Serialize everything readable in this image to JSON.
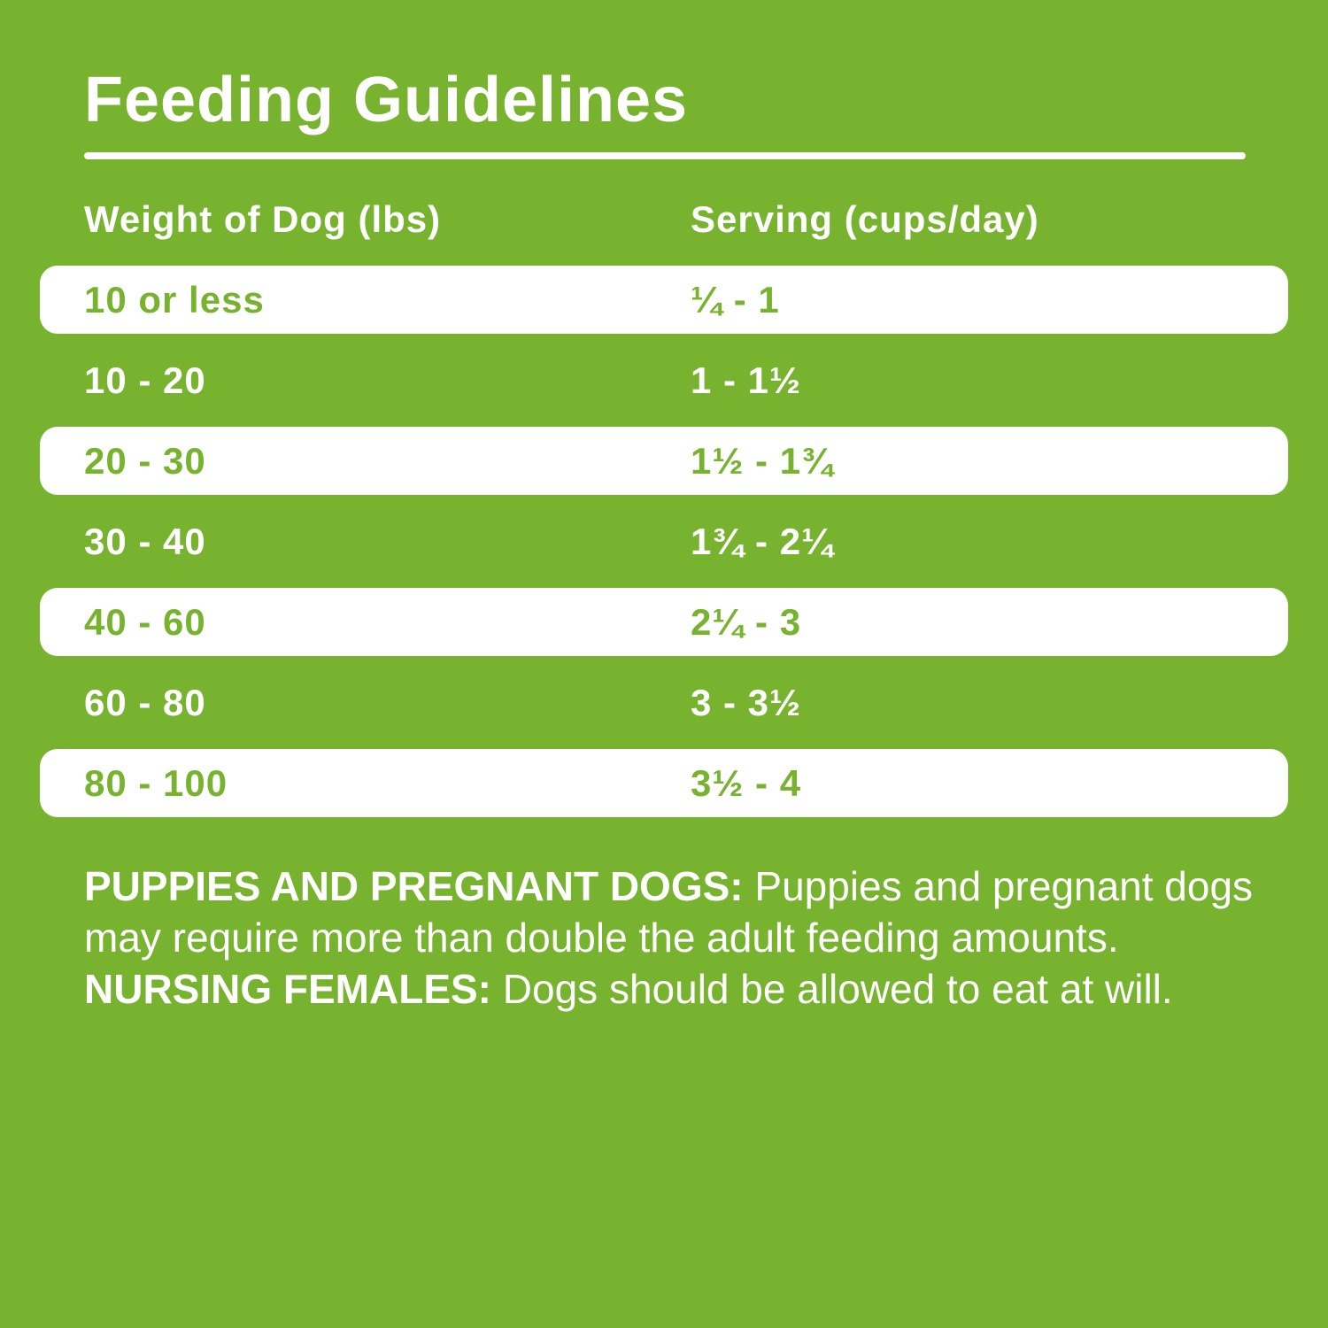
{
  "colors": {
    "background_green": "#77B32E",
    "row_white": "#FFFFFF",
    "text_white": "#FFFFFF",
    "text_green": "#77B32E"
  },
  "title": "Feeding Guidelines",
  "table": {
    "headers": {
      "weight": "Weight of Dog (lbs)",
      "serving": "Serving (cups/day)"
    },
    "rows": [
      {
        "weight": "10 or less",
        "serving": "¼ - 1"
      },
      {
        "weight": "10 - 20",
        "serving": "1 - 1½"
      },
      {
        "weight": "20 - 30",
        "serving": "1½ - 1¾"
      },
      {
        "weight": "30 - 40",
        "serving": "1¾ - 2¼"
      },
      {
        "weight": "40 - 60",
        "serving": "2¼ - 3"
      },
      {
        "weight": "60 - 80",
        "serving": "3 - 3½"
      },
      {
        "weight": "80 - 100",
        "serving": "3½ - 4"
      }
    ]
  },
  "notes": {
    "label1": "PUPPIES AND PREGNANT DOGS:",
    "body1": " Puppies and pregnant dogs may require more than double the adult feeding amounts. ",
    "label2": "NURSING FEMALES:",
    "body2": " Dogs should be allowed to eat at will."
  }
}
